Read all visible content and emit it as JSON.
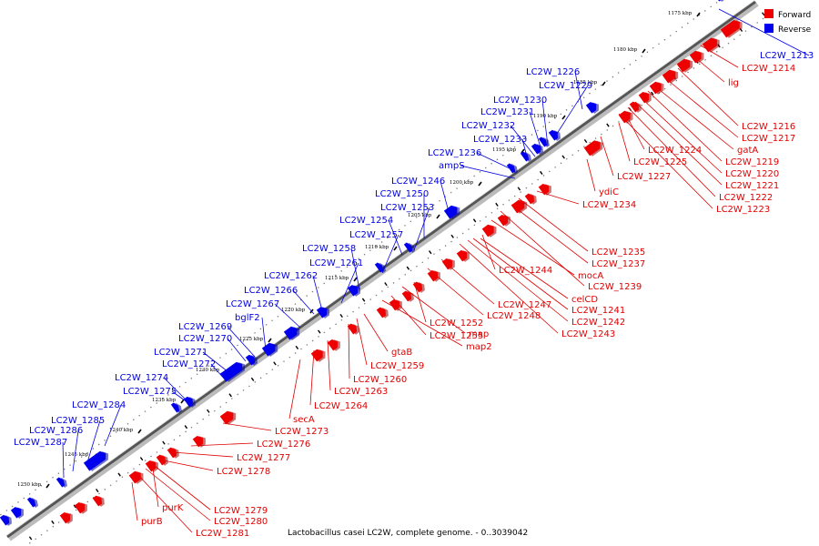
{
  "title": "Lactobacillus casei LC2W, complete genome. - 0..3039042",
  "legend": [
    {
      "label": "Forward",
      "color": "#ee0000"
    },
    {
      "label": "Reverse",
      "color": "#0000ee"
    }
  ],
  "ticks": [
    "1175 kbp",
    "1180 kbp",
    "1185 kbp",
    "1190 kbp",
    "1195 kbp",
    "1200 kbp",
    "1205 kbp",
    "1210 kbp",
    "1215 kbp",
    "1220 kbp",
    "1225 kbp",
    "1230 kbp",
    "1235 kbp",
    "1240 kbp",
    "1245 kbp",
    "1250 kbp"
  ],
  "forward_labels": [
    "LC2W_1214",
    "lig",
    "LC2W_1216",
    "LC2W_1217",
    "gatA",
    "LC2W_1219",
    "LC2W_1220",
    "LC2W_1221",
    "LC2W_1222",
    "LC2W_1223",
    "LC2W_1224",
    "LC2W_1225",
    "LC2W_1227",
    "ydiC",
    "LC2W_1234",
    "LC2W_1235",
    "LC2W_1237",
    "LC2W_1239",
    "mocA",
    "LC2W_1244",
    "celCD",
    "LC2W_1241",
    "LC2W_1242",
    "LC2W_1243",
    "LC2W_1247",
    "LC2W_1248",
    "LC2W_1252",
    "map",
    "LC2W_1255",
    "map2",
    "gtaB",
    "LC2W_1259",
    "LC2W_1260",
    "LC2W_1263",
    "LC2W_1264",
    "secA",
    "LC2W_1273",
    "LC2W_1276",
    "LC2W_1277",
    "LC2W_1278",
    "LC2W_1279",
    "LC2W_1280",
    "LC2W_1281",
    "purK",
    "purB"
  ],
  "reverse_labels": [
    "LC2W_1213",
    "LC2W_1226",
    "LC2W_1229",
    "LC2W_1230",
    "LC2W_1231",
    "LC2W_1232",
    "LC2W_1233",
    "LC2W_1236",
    "ampS",
    "LC2W_1246",
    "LC2W_1250",
    "LC2W_1253",
    "LC2W_1254",
    "LC2W_1257",
    "LC2W_1258",
    "LC2W_1261",
    "LC2W_1262",
    "LC2W_1266",
    "LC2W_1267",
    "bglF2",
    "LC2W_1269",
    "LC2W_1270",
    "LC2W_1271",
    "LC2W_1272",
    "LC2W_1274",
    "LC2W_1275",
    "LC2W_1284",
    "LC2W_1285",
    "LC2W_1286",
    "LC2W_1287"
  ]
}
